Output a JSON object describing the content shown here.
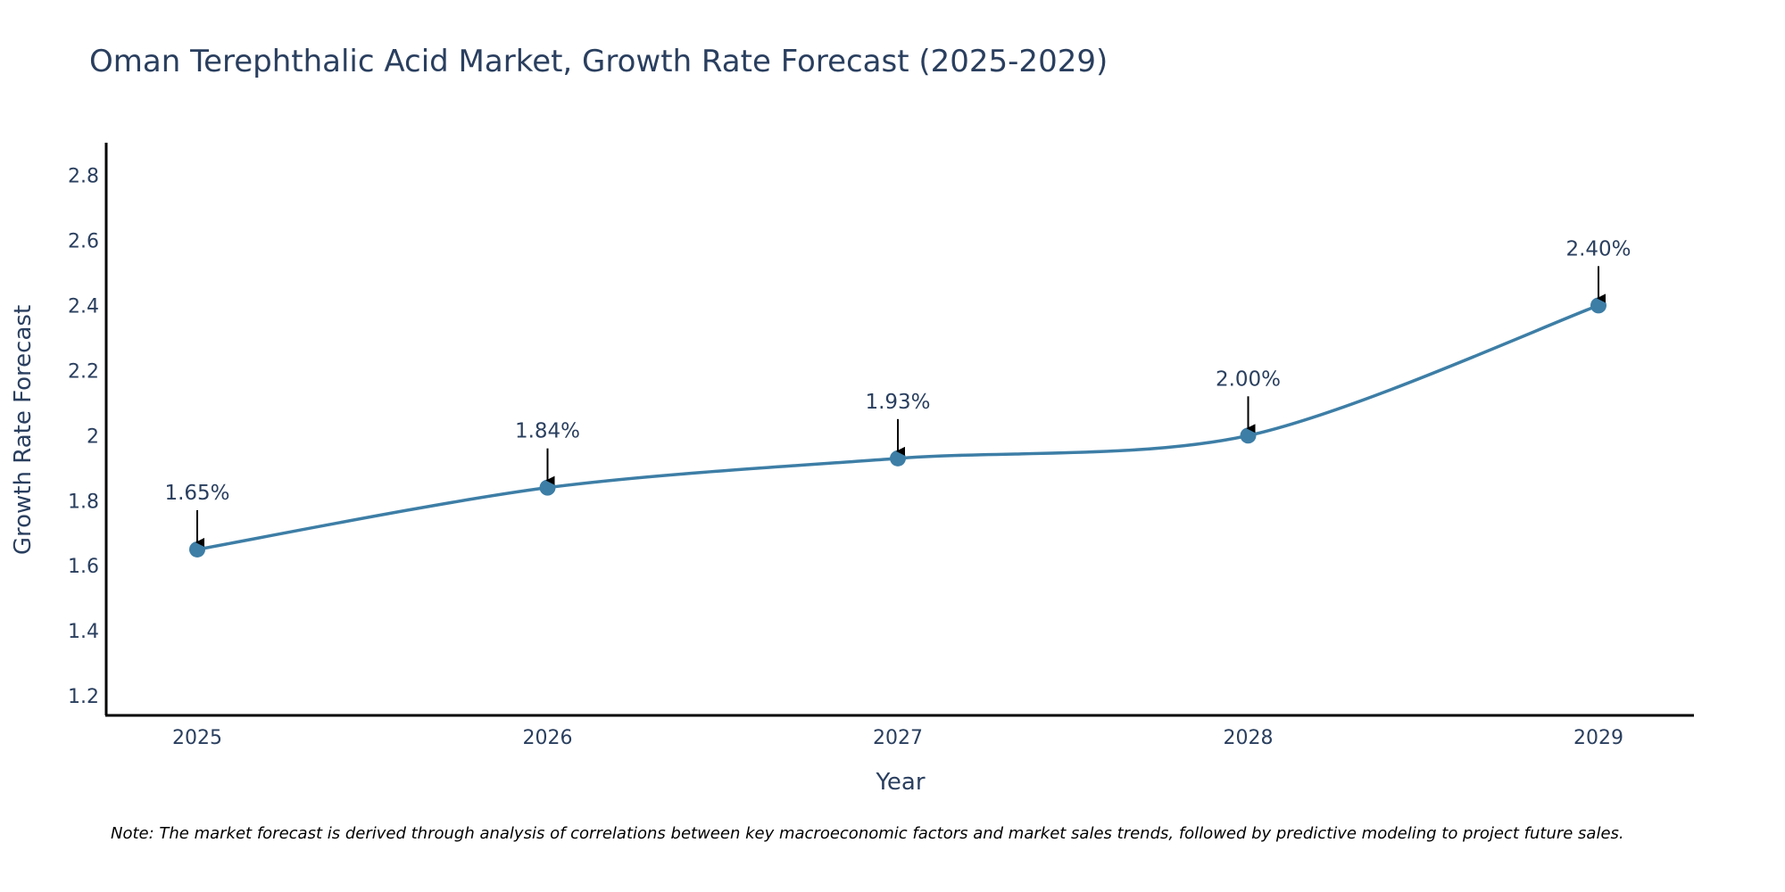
{
  "colors": {
    "line": "#3d7ea6",
    "marker": "#3d7ea6",
    "axis": "#000000",
    "text": "#2a3f5f",
    "arrow": "#000000"
  },
  "chart_data": {
    "type": "line",
    "title": "Oman Terephthalic Acid Market, Growth Rate Forecast (2025-2029)",
    "xlabel": "Year",
    "ylabel": "Growth Rate Forecast",
    "categories": [
      "2025",
      "2026",
      "2027",
      "2028",
      "2029"
    ],
    "series": [
      {
        "name": "Growth Rate Forecast",
        "values": [
          1.65,
          1.84,
          1.93,
          2.0,
          2.4
        ]
      }
    ],
    "data_labels": [
      "1.65%",
      "1.84%",
      "1.93%",
      "2.00%",
      "2.40%"
    ],
    "ylim": [
      1.14,
      2.9
    ],
    "yticks": [
      1.2,
      1.4,
      1.6,
      1.8,
      2,
      2.2,
      2.4,
      2.6,
      2.8
    ],
    "ytick_labels": [
      "1.2",
      "1.4",
      "1.6",
      "1.8",
      "2",
      "2.2",
      "2.4",
      "2.6",
      "2.8"
    ],
    "grid": false,
    "line_shape": "spline",
    "annotation_arrows": true
  },
  "footnote": "Note: The market forecast is derived through analysis of correlations between key macroeconomic factors and market sales trends, followed by predictive modeling to project future sales."
}
